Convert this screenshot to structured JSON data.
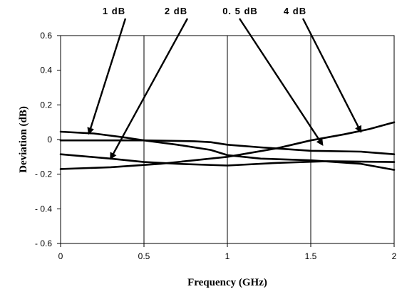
{
  "chart_data": {
    "type": "line",
    "title": "",
    "xlabel": "Frequency (GHz)",
    "ylabel": "Deviation (dB)",
    "xlim": [
      0,
      2
    ],
    "ylim": [
      -0.6,
      0.6
    ],
    "x_ticks": [
      0,
      0.5,
      1,
      1.5,
      2
    ],
    "x_tick_labels": [
      "0",
      "0.5",
      "1",
      "1.5",
      "2"
    ],
    "y_ticks": [
      0.6,
      0.4,
      0.2,
      0,
      -0.2,
      -0.4,
      -0.6
    ],
    "y_tick_labels": [
      "0.6",
      "0.4",
      "0.2",
      "0",
      "- 0.2",
      "- 0.4",
      "- 0.6"
    ],
    "grid": "vertical",
    "legend": "none",
    "series": [
      {
        "x": [
          0,
          0.2,
          0.4,
          0.5,
          0.7,
          0.9,
          1.0,
          1.2,
          1.5,
          1.8,
          2.0
        ],
        "y": [
          0.045,
          0.035,
          0.01,
          -0.005,
          -0.03,
          -0.06,
          -0.09,
          -0.11,
          -0.12,
          -0.14,
          -0.175
        ]
      },
      {
        "x": [
          0,
          0.3,
          0.5,
          0.7,
          1.0,
          1.3,
          1.6,
          2.0
        ],
        "y": [
          -0.085,
          -0.11,
          -0.13,
          -0.14,
          -0.15,
          -0.135,
          -0.125,
          -0.13
        ]
      },
      {
        "x": [
          0,
          0.5,
          0.8,
          0.9,
          1.0,
          1.2,
          1.5,
          1.8,
          2.0
        ],
        "y": [
          -0.005,
          -0.005,
          -0.01,
          -0.015,
          -0.03,
          -0.045,
          -0.065,
          -0.07,
          -0.085
        ]
      },
      {
        "x": [
          0,
          0.3,
          0.6,
          1.0,
          1.3,
          1.5,
          1.7,
          1.85,
          2.0
        ],
        "y": [
          -0.17,
          -0.16,
          -0.14,
          -0.1,
          -0.05,
          -0.005,
          0.03,
          0.06,
          0.1
        ]
      }
    ],
    "annotations": [
      {
        "label": "1 dB",
        "point": [
          0.17,
          0.035
        ]
      },
      {
        "label": "2 dB",
        "point": [
          0.3,
          -0.11
        ]
      },
      {
        "label": "0. 5 dB",
        "point": [
          1.57,
          -0.03
        ]
      },
      {
        "label": "4 dB",
        "point": [
          1.8,
          0.045
        ]
      }
    ]
  }
}
